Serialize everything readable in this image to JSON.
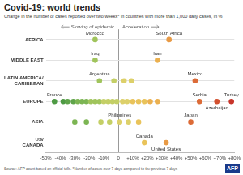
{
  "chart_data": {
    "type": "scatter",
    "title": "Covid-19: world trends",
    "subtitle": "Change in the number of cases reported over two weeks* in countries with more than 1,000 daily cases, in %",
    "annotations": [
      "Slowing of epidemic",
      "Acceleration"
    ],
    "source": "Source: AFP count based on official tolls. *Number of cases over 7 days compared to the previous 7 days",
    "credit": "AFP",
    "categories": [
      "AFRICA",
      "MIDDLE EAST",
      "LATIN AMERICA/CARIBBEAN",
      "EUROPE",
      "ASIA",
      "US/CANADA"
    ],
    "xlim": [
      -50,
      80
    ],
    "xticks": [
      {
        "value": -50,
        "label": "-50%"
      },
      {
        "value": -40,
        "label": "-40%"
      },
      {
        "value": -30,
        "label": "-30%"
      },
      {
        "value": -20,
        "label": "-20%"
      },
      {
        "value": -10,
        "label": "-10%"
      },
      0,
      {
        "value": 10,
        "label": "+10%"
      },
      {
        "value": 20,
        "label": "+20%"
      },
      {
        "value": 30,
        "label": "+30%"
      },
      {
        "value": 40,
        "label": "+40%"
      },
      {
        "value": 50,
        "label": "+50%"
      },
      {
        "value": 60,
        "label": "+60%"
      },
      {
        "value": 70,
        "label": "+70%"
      },
      {
        "value": 80,
        "label": "+80%"
      }
    ],
    "grid": true,
    "points": [
      {
        "category": "AFRICA",
        "value": -16,
        "label": "Morocco",
        "color": "#a0c45c"
      },
      {
        "category": "AFRICA",
        "value": 35,
        "label": "South Africa",
        "color": "#e89a45"
      },
      {
        "category": "MIDDLE EAST",
        "value": -16,
        "label": "Iraq",
        "color": "#a0c45c"
      },
      {
        "category": "MIDDLE EAST",
        "value": 27,
        "label": "Iran",
        "color": "#ebb04f"
      },
      {
        "category": "LATIN AMERICA/CARIBBEAN",
        "value": -13,
        "label": "Argentina",
        "color": "#a0c45c"
      },
      {
        "category": "LATIN AMERICA/CARIBBEAN",
        "value": -3,
        "label": null,
        "color": "#c4cf66"
      },
      {
        "category": "LATIN AMERICA/CARIBBEAN",
        "value": 4,
        "label": null,
        "color": "#ddd06a"
      },
      {
        "category": "LATIN AMERICA/CARIBBEAN",
        "value": 9,
        "label": null,
        "color": "#ddd06a"
      },
      {
        "category": "LATIN AMERICA/CARIBBEAN",
        "value": 53,
        "label": "Mexico",
        "color": "#dc6b37"
      },
      {
        "category": "EUROPE",
        "value": -44,
        "label": "France",
        "color": "#4e9a44"
      },
      {
        "category": "EUROPE",
        "value": -38,
        "label": null,
        "color": "#4e9a44"
      },
      {
        "category": "EUROPE",
        "value": -35,
        "label": null,
        "color": "#5fa44a"
      },
      {
        "category": "EUROPE",
        "value": -31,
        "label": null,
        "color": "#5fa44a"
      },
      {
        "category": "EUROPE",
        "value": -28,
        "label": null,
        "color": "#7cb553"
      },
      {
        "category": "EUROPE",
        "value": -25,
        "label": null,
        "color": "#7cb553"
      },
      {
        "category": "EUROPE",
        "value": -22,
        "label": null,
        "color": "#7cb553"
      },
      {
        "category": "EUROPE",
        "value": -19,
        "label": null,
        "color": "#a0c45c"
      },
      {
        "category": "EUROPE",
        "value": -16,
        "label": null,
        "color": "#a0c45c"
      },
      {
        "category": "EUROPE",
        "value": -13,
        "label": null,
        "color": "#a0c45c"
      },
      {
        "category": "EUROPE",
        "value": -10,
        "label": null,
        "color": "#c4cf66"
      },
      {
        "category": "EUROPE",
        "value": -7,
        "label": null,
        "color": "#c4cf66"
      },
      {
        "category": "EUROPE",
        "value": -4,
        "label": null,
        "color": "#c4cf66"
      },
      {
        "category": "EUROPE",
        "value": -1,
        "label": null,
        "color": "#c4cf66"
      },
      {
        "category": "EUROPE",
        "value": 3,
        "label": null,
        "color": "#ddd06a"
      },
      {
        "category": "EUROPE",
        "value": 6,
        "label": null,
        "color": "#ddd06a"
      },
      {
        "category": "EUROPE",
        "value": 10,
        "label": null,
        "color": "#e9c35a"
      },
      {
        "category": "EUROPE",
        "value": 14,
        "label": null,
        "color": "#e9c35a"
      },
      {
        "category": "EUROPE",
        "value": 18,
        "label": null,
        "color": "#e9c35a"
      },
      {
        "category": "EUROPE",
        "value": 22,
        "label": null,
        "color": "#ebb04f"
      },
      {
        "category": "EUROPE",
        "value": 27,
        "label": null,
        "color": "#ebb04f"
      },
      {
        "category": "EUROPE",
        "value": 56,
        "label": "Serbia",
        "color": "#dc6b37"
      },
      {
        "category": "EUROPE",
        "value": 68,
        "label": "Azerbaijan",
        "color": "#d2502f"
      },
      {
        "category": "EUROPE",
        "value": 78,
        "label": "Turkey",
        "color": "#c8352a"
      },
      {
        "category": "ASIA",
        "value": -30,
        "label": null,
        "color": "#7cb553"
      },
      {
        "category": "ASIA",
        "value": -22,
        "label": null,
        "color": "#7cb553"
      },
      {
        "category": "ASIA",
        "value": -12,
        "label": null,
        "color": "#c4cf66"
      },
      {
        "category": "ASIA",
        "value": -6,
        "label": null,
        "color": "#c4cf66"
      },
      {
        "category": "ASIA",
        "value": 1,
        "label": "Philippines",
        "color": "#ddd06a"
      },
      {
        "category": "ASIA",
        "value": 7,
        "label": null,
        "color": "#ddd06a"
      },
      {
        "category": "ASIA",
        "value": 14,
        "label": null,
        "color": "#e9c35a"
      },
      {
        "category": "ASIA",
        "value": 50,
        "label": "Japan",
        "color": "#dc6b37"
      },
      {
        "category": "US/CANADA",
        "value": 18,
        "label": "Canada",
        "color": "#e9c35a"
      },
      {
        "category": "US/CANADA",
        "value": 33,
        "label": "United States",
        "color": "#e89a45"
      }
    ]
  }
}
